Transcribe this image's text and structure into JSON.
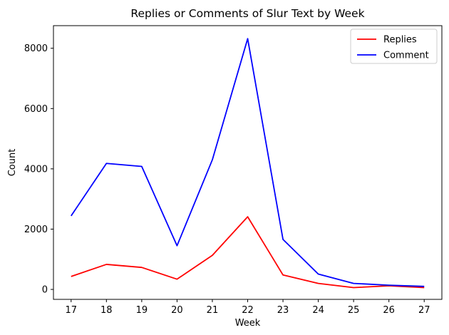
{
  "chart_data": {
    "type": "line",
    "title": "Replies or Comments of Slur Text by Week",
    "xlabel": "Week",
    "ylabel": "Count",
    "x": [
      17,
      18,
      19,
      20,
      21,
      22,
      23,
      24,
      25,
      26,
      27
    ],
    "x_tick_labels": [
      "17",
      "18",
      "19",
      "20",
      "21",
      "22",
      "23",
      "24",
      "25",
      "26",
      "27"
    ],
    "xlim": [
      16.5,
      27.5
    ],
    "ylim": [
      -330,
      8750
    ],
    "y_ticks": [
      0,
      2000,
      4000,
      6000,
      8000
    ],
    "y_tick_labels": [
      "0",
      "2000",
      "4000",
      "6000",
      "8000"
    ],
    "grid": false,
    "legend_position": "top-right",
    "series": [
      {
        "name": "Replies",
        "color": "#ff0000",
        "values": [
          430,
          830,
          730,
          340,
          1130,
          2410,
          480,
          200,
          60,
          120,
          60
        ]
      },
      {
        "name": "Comment",
        "color": "#0000ff",
        "values": [
          2440,
          4180,
          4080,
          1450,
          4300,
          8320,
          1660,
          510,
          200,
          140,
          100
        ]
      }
    ]
  }
}
